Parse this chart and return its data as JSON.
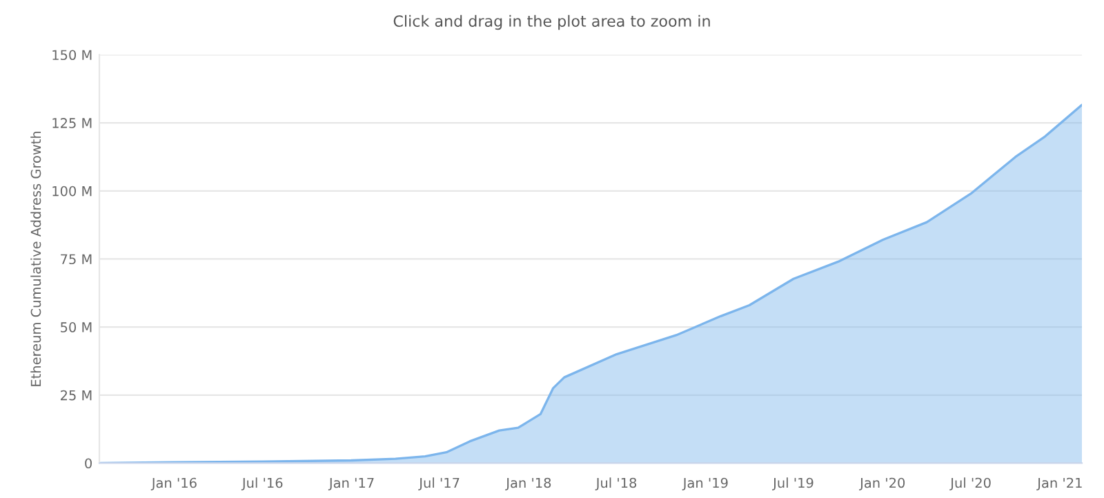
{
  "chart_data": {
    "type": "area",
    "subtitle": "Click and drag in the plot area to zoom in",
    "ylabel": "Ethereum Cumulative Address Growth",
    "x": [
      "2015-07-30",
      "2016-01-01",
      "2016-07-01",
      "2017-01-01",
      "2017-04-01",
      "2017-06-01",
      "2017-07-15",
      "2017-09-01",
      "2017-11-01",
      "2017-12-10",
      "2018-01-25",
      "2018-02-20",
      "2018-03-15",
      "2018-07-01",
      "2018-11-01",
      "2019-02-01",
      "2019-04-01",
      "2019-07-01",
      "2019-10-01",
      "2020-01-01",
      "2020-04-01",
      "2020-07-01",
      "2020-10-01",
      "2020-12-01",
      "2021-02-15"
    ],
    "series": [
      {
        "color": "#7cb5ec",
        "values": [
          0,
          0.3,
          0.6,
          1,
          1.6,
          2.5,
          4,
          8,
          12,
          13,
          18,
          27.5,
          31.5,
          40,
          47,
          54,
          58,
          67.7,
          74,
          82,
          88.5,
          99,
          112.5,
          120,
          131.6
        ]
      }
    ],
    "xlim": [
      "2015-07-30",
      "2021-02-15"
    ],
    "xticks": [
      {
        "value": "2016-01-01",
        "label": "Jan '16"
      },
      {
        "value": "2016-07-01",
        "label": "Jul '16"
      },
      {
        "value": "2017-01-01",
        "label": "Jan '17"
      },
      {
        "value": "2017-07-01",
        "label": "Jul '17"
      },
      {
        "value": "2018-01-01",
        "label": "Jan '18"
      },
      {
        "value": "2018-07-01",
        "label": "Jul '18"
      },
      {
        "value": "2019-01-01",
        "label": "Jan '19"
      },
      {
        "value": "2019-07-01",
        "label": "Jul '19"
      },
      {
        "value": "2020-01-01",
        "label": "Jan '20"
      },
      {
        "value": "2020-07-01",
        "label": "Jul '20"
      },
      {
        "value": "2021-01-01",
        "label": "Jan '21"
      }
    ],
    "ylim": [
      0,
      150
    ],
    "yticks": [
      0,
      {
        "value": 25,
        "label": "25 M"
      },
      {
        "value": 50,
        "label": "50 M"
      },
      {
        "value": 75,
        "label": "75 M"
      },
      {
        "value": 100,
        "label": "100 M"
      },
      {
        "value": 125,
        "label": "125 M"
      },
      {
        "value": 150,
        "label": "150 M"
      }
    ],
    "grid": "y"
  }
}
